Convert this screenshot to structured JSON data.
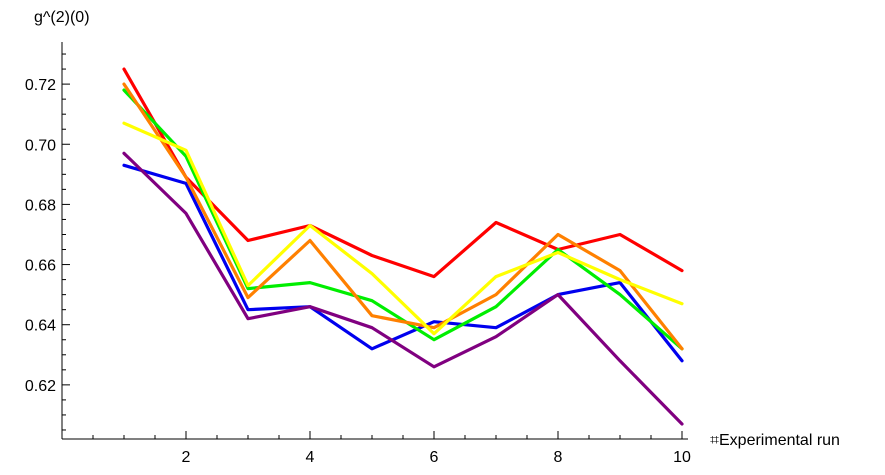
{
  "chart_data": {
    "type": "line",
    "title": "",
    "xlabel": "⌗Experimental run",
    "ylabel": "g^(2)(0)",
    "xlim": [
      0,
      10
    ],
    "ylim": [
      0.602,
      0.734
    ],
    "x_ticks": [
      2,
      4,
      6,
      8,
      10
    ],
    "x_tick_labels": [
      "2",
      "4",
      "6",
      "8",
      "10"
    ],
    "y_ticks": [
      0.62,
      0.64,
      0.66,
      0.68,
      0.7,
      0.72
    ],
    "y_tick_labels": [
      "0.62",
      "0.64",
      "0.66",
      "0.68",
      "0.70",
      "0.72"
    ],
    "grid": false,
    "x": [
      1,
      2,
      3,
      4,
      5,
      6,
      7,
      8,
      9,
      10
    ],
    "series": [
      {
        "color": "#ff0000",
        "values": [
          0.725,
          0.689,
          0.668,
          0.673,
          0.663,
          0.656,
          0.674,
          0.665,
          0.67,
          0.658
        ]
      },
      {
        "color": "#0000ee",
        "values": [
          0.693,
          0.687,
          0.645,
          0.646,
          0.632,
          0.641,
          0.639,
          0.65,
          0.654,
          0.628
        ]
      },
      {
        "color": "#00ee00",
        "values": [
          0.718,
          0.696,
          0.652,
          0.654,
          0.648,
          0.635,
          0.646,
          0.665,
          0.65,
          0.632
        ]
      },
      {
        "color": "#ff8000",
        "values": [
          0.72,
          0.689,
          0.649,
          0.668,
          0.643,
          0.639,
          0.65,
          0.67,
          0.658,
          0.632
        ]
      },
      {
        "color": "#ffff00",
        "values": [
          0.707,
          0.698,
          0.653,
          0.673,
          0.657,
          0.637,
          0.656,
          0.664,
          0.655,
          0.647
        ]
      },
      {
        "color": "#800080",
        "values": [
          0.697,
          0.677,
          0.642,
          0.646,
          0.639,
          0.626,
          0.636,
          0.65,
          0.628,
          0.607
        ]
      }
    ]
  }
}
